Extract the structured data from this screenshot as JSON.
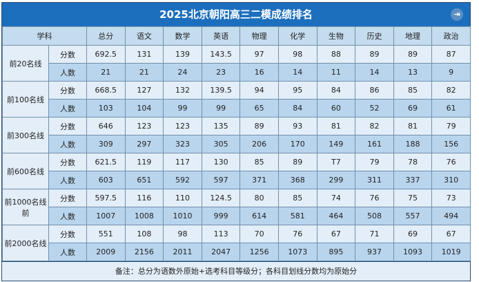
{
  "title": "2025北京朝阳高三二模成绩排名",
  "exit_icon": "exit-icon",
  "header": {
    "subject": "学科",
    "columns": [
      "总分",
      "语文",
      "数学",
      "英语",
      "物理",
      "化学",
      "生物",
      "历史",
      "地理",
      "政治"
    ]
  },
  "groups": [
    {
      "label": "前20名线",
      "score_label": "分数",
      "count_label": "人数",
      "scores": [
        "692.5",
        "131",
        "139",
        "143.5",
        "97",
        "98",
        "88",
        "89",
        "89",
        "87"
      ],
      "counts": [
        "21",
        "21",
        "24",
        "23",
        "16",
        "14",
        "11",
        "14",
        "13",
        "9"
      ]
    },
    {
      "label": "前100名线",
      "score_label": "分数",
      "count_label": "人数",
      "scores": [
        "668.5",
        "127",
        "132",
        "139.5",
        "94",
        "95",
        "84",
        "86",
        "85",
        "82"
      ],
      "counts": [
        "103",
        "104",
        "99",
        "99",
        "65",
        "84",
        "60",
        "52",
        "69",
        "61"
      ]
    },
    {
      "label": "前300名线",
      "score_label": "分数",
      "count_label": "人数",
      "scores": [
        "646",
        "123",
        "123",
        "135",
        "89",
        "93",
        "81",
        "82",
        "81",
        "79"
      ],
      "counts": [
        "309",
        "297",
        "323",
        "305",
        "206",
        "170",
        "149",
        "161",
        "188",
        "156"
      ]
    },
    {
      "label": "前600名线",
      "score_label": "分数",
      "count_label": "人数",
      "scores": [
        "621.5",
        "119",
        "117",
        "130",
        "85",
        "89",
        "T7",
        "79",
        "78",
        "76"
      ],
      "counts": [
        "603",
        "651",
        "592",
        "597",
        "371",
        "368",
        "299",
        "311",
        "337",
        "310"
      ]
    },
    {
      "label": "前1000名线前",
      "score_label": "分数",
      "count_label": "人数",
      "scores": [
        "597.5",
        "116",
        "110",
        "124.5",
        "80",
        "85",
        "74",
        "76",
        "75",
        "73"
      ],
      "counts": [
        "1007",
        "1008",
        "1010",
        "999",
        "614",
        "581",
        "464",
        "508",
        "557",
        "494"
      ]
    },
    {
      "label": "前2000名线",
      "score_label": "分数",
      "count_label": "人数",
      "scores": [
        "551",
        "108",
        "98",
        "113",
        "70",
        "76",
        "67",
        "71",
        "69",
        "67"
      ],
      "counts": [
        "2009",
        "2156",
        "2011",
        "2047",
        "1256",
        "1073",
        "895",
        "937",
        "1093",
        "1019"
      ]
    }
  ],
  "note": "备注：总分为语数外原始+选考科目等级分；各科目划线分数均为原始分"
}
